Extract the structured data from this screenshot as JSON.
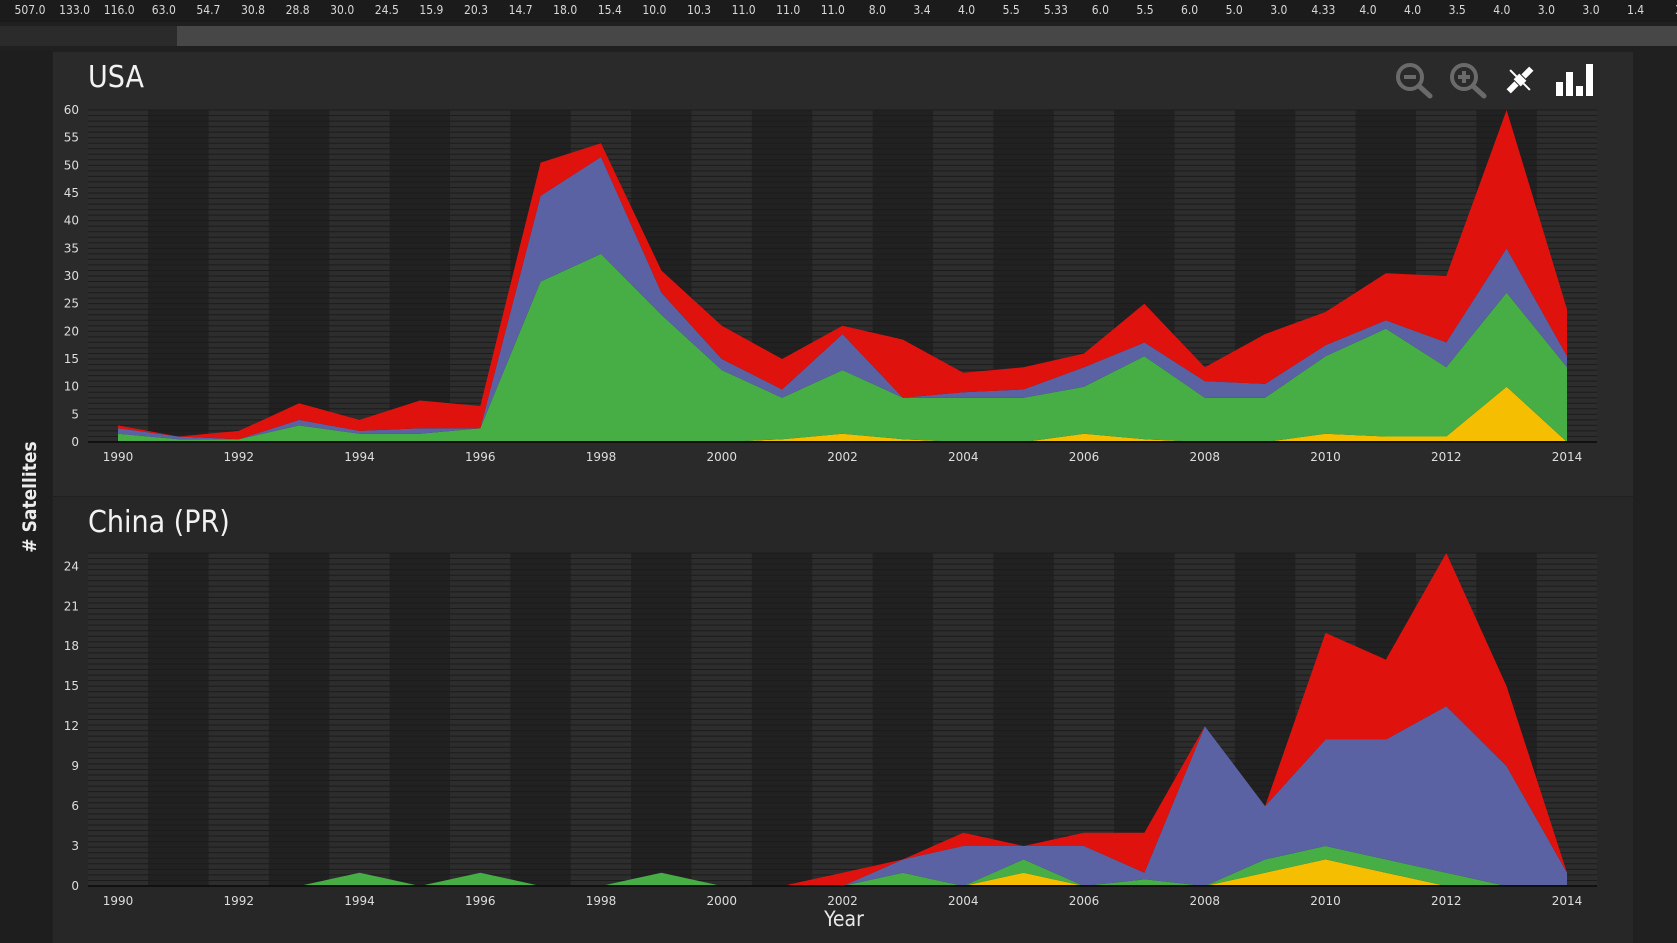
{
  "ticker": [
    "507.0",
    "133.0",
    "116.0",
    "63.0",
    "54.7",
    "30.8",
    "28.8",
    "30.0",
    "24.5",
    "15.9",
    "20.3",
    "14.7",
    "18.0",
    "15.4",
    "10.0",
    "10.3",
    "11.0",
    "11.0",
    "11.0",
    "8.0",
    "3.4",
    "4.0",
    "5.5",
    "5.33",
    "6.0",
    "5.5",
    "6.0",
    "5.0",
    "3.0",
    "4.33",
    "4.0",
    "4.0",
    "3.5",
    "4.0",
    "3.0",
    "3.0",
    "1.4",
    "3."
  ],
  "toolbar": {
    "icons": [
      "zoom-out-icon",
      "zoom-in-icon",
      "satellite-icon",
      "bar-chart-icon"
    ]
  },
  "y_axis_label": "# Satellites",
  "colors": {
    "yellow": "#f5bf00",
    "green": "#46ae45",
    "blue": "#5a62a4",
    "red": "#e0120e"
  },
  "chart_data": [
    {
      "type": "area",
      "title": "USA",
      "xlabel": "",
      "ylabel": "# Satellites",
      "stacked": true,
      "x": [
        1990,
        1991,
        1992,
        1993,
        1994,
        1995,
        1996,
        1997,
        1998,
        1999,
        2000,
        2001,
        2002,
        2003,
        2004,
        2005,
        2006,
        2007,
        2008,
        2009,
        2010,
        2011,
        2012,
        2013,
        2014
      ],
      "xticks": [
        1990,
        1992,
        1994,
        1996,
        1998,
        2000,
        2002,
        2004,
        2006,
        2008,
        2010,
        2012,
        2014
      ],
      "yticks": [
        0,
        5,
        10,
        15,
        20,
        25,
        30,
        35,
        40,
        45,
        50,
        55,
        60
      ],
      "ylim": [
        0,
        60
      ],
      "series": [
        {
          "color": "#f5bf00",
          "values": [
            0,
            0,
            0,
            0,
            0,
            0,
            0,
            0,
            0,
            0,
            0,
            0.5,
            1.5,
            0.5,
            0,
            0,
            1.5,
            0.5,
            0,
            0,
            1.5,
            1,
            1,
            10,
            0
          ]
        },
        {
          "color": "#46ae45",
          "values": [
            1.5,
            0.5,
            0.5,
            3,
            1.5,
            1.5,
            2.5,
            29,
            34,
            23,
            13,
            7.5,
            11.5,
            7.5,
            8,
            8,
            8.5,
            15,
            8,
            8,
            14,
            19.5,
            12.5,
            17,
            13.5
          ]
        },
        {
          "color": "#5a62a4",
          "values": [
            1,
            0.5,
            0,
            1,
            0.5,
            1,
            0,
            15.5,
            17.5,
            4,
            2,
            1.5,
            6.5,
            0,
            1,
            1.5,
            3.5,
            2.5,
            3,
            2.5,
            2,
            1.5,
            4.5,
            8,
            2
          ]
        },
        {
          "color": "#e0120e",
          "values": [
            0.5,
            0,
            1.5,
            3,
            2,
            5,
            4,
            6,
            2.5,
            4,
            6,
            5.5,
            1.5,
            10.5,
            3.5,
            4,
            2.5,
            7,
            2.5,
            9,
            6,
            8.5,
            12,
            25,
            8.5
          ]
        }
      ]
    },
    {
      "type": "area",
      "title": "China (PR)",
      "xlabel": "Year",
      "ylabel": "# Satellites",
      "stacked": true,
      "x": [
        1990,
        1991,
        1992,
        1993,
        1994,
        1995,
        1996,
        1997,
        1998,
        1999,
        2000,
        2001,
        2002,
        2003,
        2004,
        2005,
        2006,
        2007,
        2008,
        2009,
        2010,
        2011,
        2012,
        2013,
        2014
      ],
      "xticks": [
        1990,
        1992,
        1994,
        1996,
        1998,
        2000,
        2002,
        2004,
        2006,
        2008,
        2010,
        2012,
        2014
      ],
      "yticks": [
        0,
        3,
        6,
        9,
        12,
        15,
        18,
        21,
        24
      ],
      "ylim": [
        0,
        25
      ],
      "series": [
        {
          "color": "#f5bf00",
          "values": [
            0,
            0,
            0,
            0,
            0,
            0,
            0,
            0,
            0,
            0,
            0,
            0,
            0,
            0,
            0,
            1,
            0,
            0,
            0,
            1,
            2,
            1,
            0,
            0,
            0
          ]
        },
        {
          "color": "#46ae45",
          "values": [
            0,
            0,
            0,
            0,
            1,
            0,
            1,
            0,
            0,
            1,
            0,
            0,
            0,
            1,
            0,
            1,
            0,
            0.5,
            0,
            1,
            1,
            1,
            1,
            0,
            0
          ]
        },
        {
          "color": "#5a62a4",
          "values": [
            0,
            0,
            0,
            0,
            0,
            0,
            0,
            0,
            0,
            0,
            0,
            0,
            0,
            1,
            3,
            1,
            3,
            0.5,
            12,
            4,
            8,
            9,
            12.5,
            9,
            1
          ]
        },
        {
          "color": "#e0120e",
          "values": [
            0,
            0,
            0,
            0,
            0,
            0,
            0,
            0,
            0,
            0,
            0,
            0,
            1,
            0,
            1,
            0,
            1,
            3,
            0,
            0,
            8,
            6,
            11.5,
            6,
            0
          ]
        }
      ]
    }
  ]
}
